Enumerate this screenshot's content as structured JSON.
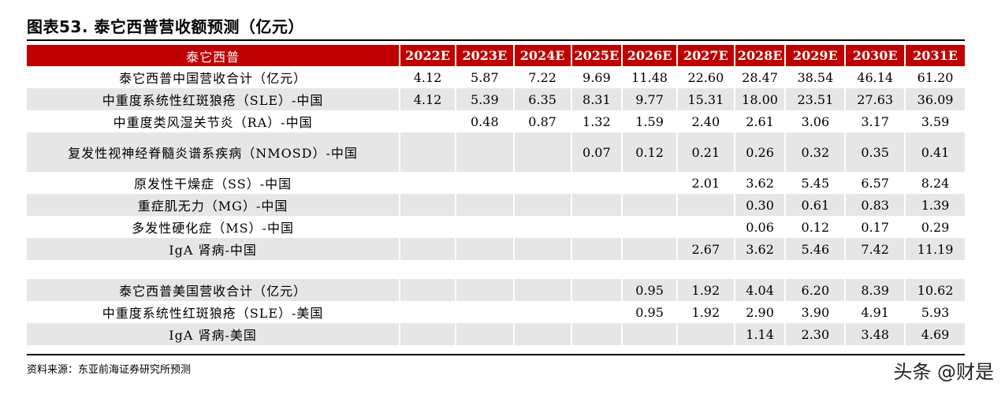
{
  "title": "图表53. 泰它西普营收额预测（亿元）",
  "header": {
    "label": "泰它西普",
    "years": [
      "2022E",
      "2023E",
      "2024E",
      "2025E",
      "2026E",
      "2027E",
      "2028E",
      "2029E",
      "2030E",
      "2031E"
    ]
  },
  "rows": [
    {
      "label": "泰它西普中国营收合计（亿元）",
      "values": [
        "4.12",
        "5.87",
        "7.22",
        "9.69",
        "11.48",
        "22.60",
        "28.47",
        "38.54",
        "46.14",
        "61.20"
      ]
    },
    {
      "label": "中重度系统性红斑狼疮（SLE）-中国",
      "values": [
        "4.12",
        "5.39",
        "6.35",
        "8.31",
        "9.77",
        "15.31",
        "18.00",
        "23.51",
        "27.63",
        "36.09"
      ]
    },
    {
      "label": "中重度类风湿关节炎（RA）-中国",
      "values": [
        "",
        "0.48",
        "0.87",
        "1.32",
        "1.59",
        "2.40",
        "2.61",
        "3.06",
        "3.17",
        "3.59"
      ]
    },
    {
      "label": "复发性视神经脊髓炎谱系疾病（NMOSD）-中国",
      "values": [
        "",
        "",
        "",
        "0.07",
        "0.12",
        "0.21",
        "0.26",
        "0.32",
        "0.35",
        "0.41"
      ]
    },
    {
      "label": "原发性干燥症（SS）-中国",
      "values": [
        "",
        "",
        "",
        "",
        "",
        "2.01",
        "3.62",
        "5.45",
        "6.57",
        "8.24"
      ]
    },
    {
      "label": "重症肌无力（MG）-中国",
      "values": [
        "",
        "",
        "",
        "",
        "",
        "",
        "0.30",
        "0.61",
        "0.83",
        "1.39"
      ]
    },
    {
      "label": "多发性硬化症（MS）-中国",
      "values": [
        "",
        "",
        "",
        "",
        "",
        "",
        "0.06",
        "0.12",
        "0.17",
        "0.29"
      ]
    },
    {
      "label": "IgA 肾病-中国",
      "values": [
        "",
        "",
        "",
        "",
        "",
        "2.67",
        "3.62",
        "5.46",
        "7.42",
        "11.19"
      ]
    },
    {
      "label": "",
      "values": [
        "",
        "",
        "",
        "",
        "",
        "",
        "",
        "",
        "",
        ""
      ]
    },
    {
      "label": "泰它西普美国营收合计（亿元）",
      "values": [
        "",
        "",
        "",
        "",
        "0.95",
        "1.92",
        "4.04",
        "6.20",
        "8.39",
        "10.62"
      ]
    },
    {
      "label": "中重度系统性红斑狼疮（SLE）-美国",
      "values": [
        "",
        "",
        "",
        "",
        "0.95",
        "1.92",
        "2.90",
        "3.90",
        "4.91",
        "5.93"
      ]
    },
    {
      "label": "IgA 肾病-美国",
      "values": [
        "",
        "",
        "",
        "",
        "",
        "",
        "1.14",
        "2.30",
        "3.48",
        "4.69"
      ]
    }
  ],
  "source": "资料来源：东亚前海证券研究所预测",
  "watermark": "头条 @财是",
  "colors": {
    "header_bg": "#c00000",
    "stripe": "#e6e6e6"
  }
}
